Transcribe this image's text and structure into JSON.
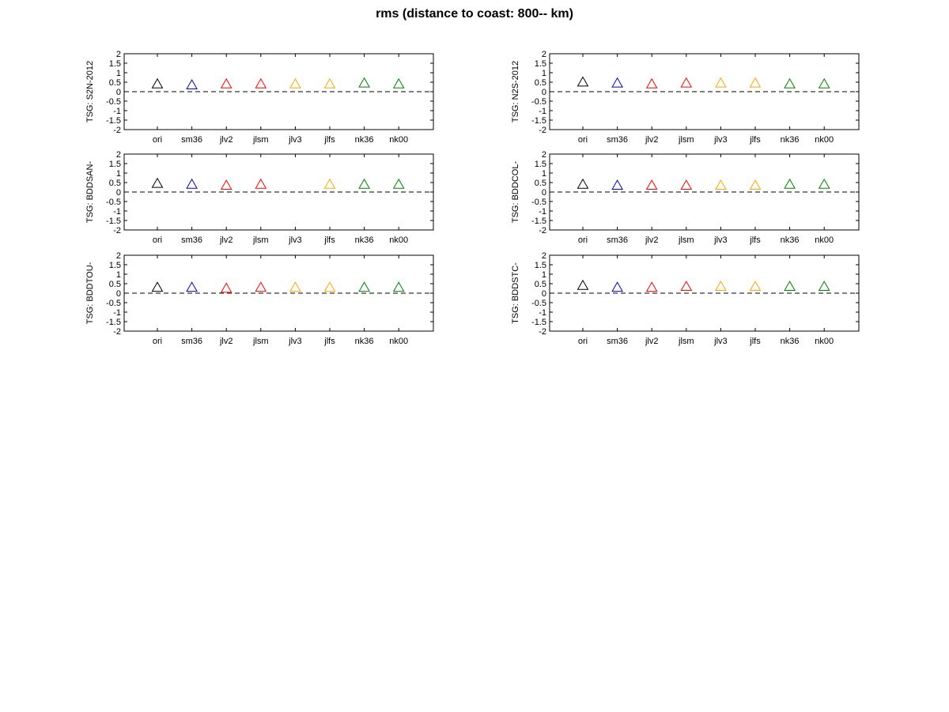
{
  "title": "rms (distance to coast: 800-- km)",
  "colors": {
    "ori": "#000000",
    "sm36": "#0000cc",
    "jlv2": "#ff0000",
    "jlsm": "#ff0000",
    "jlv3": "#ffa500",
    "jlfs": "#ffa500",
    "nk36": "#008000",
    "nk00": "#008000"
  },
  "chart_data": [
    {
      "type": "scatter",
      "ylabel": "TSG: S2N-2012",
      "categories": [
        "ori",
        "sm36",
        "jlv2",
        "jlsm",
        "jlv3",
        "jlfs",
        "nk36",
        "nk00"
      ],
      "values": [
        0.4,
        0.35,
        0.4,
        0.4,
        0.4,
        0.4,
        0.45,
        0.4
      ],
      "ylim": [
        -2,
        2
      ],
      "yticks": [
        "2",
        "1.5",
        "1",
        "0.5",
        "0",
        "-0.5",
        "-1",
        "-1.5",
        "-2"
      ],
      "reference_line": 0,
      "marker": "triangle",
      "grid": false
    },
    {
      "type": "scatter",
      "ylabel": "TSG: N2S-2012",
      "categories": [
        "ori",
        "sm36",
        "jlv2",
        "jlsm",
        "jlv3",
        "jlfs",
        "nk36",
        "nk00"
      ],
      "values": [
        0.5,
        0.45,
        0.4,
        0.45,
        0.45,
        0.45,
        0.4,
        0.4
      ],
      "ylim": [
        -2,
        2
      ],
      "yticks": [
        "2",
        "1.5",
        "1",
        "0.5",
        "0",
        "-0.5",
        "-1",
        "-1.5",
        "-2"
      ],
      "reference_line": 0,
      "marker": "triangle",
      "grid": false
    },
    {
      "type": "scatter",
      "ylabel": "TSG: BDDSAN-",
      "categories": [
        "ori",
        "sm36",
        "jlv2",
        "jlsm",
        "jlv3",
        "jlfs",
        "nk36",
        "nk00"
      ],
      "values": [
        0.45,
        0.4,
        0.35,
        0.4,
        null,
        0.4,
        0.4,
        0.4
      ],
      "ylim": [
        -2,
        2
      ],
      "yticks": [
        "2",
        "1.5",
        "1",
        "0.5",
        "0",
        "-0.5",
        "-1",
        "-1.5",
        "-2"
      ],
      "reference_line": 0,
      "marker": "triangle",
      "grid": false
    },
    {
      "type": "scatter",
      "ylabel": "TSG: BDDCOL-",
      "categories": [
        "ori",
        "sm36",
        "jlv2",
        "jlsm",
        "jlv3",
        "jlfs",
        "nk36",
        "nk00"
      ],
      "values": [
        0.4,
        0.35,
        0.35,
        0.35,
        0.35,
        0.35,
        0.4,
        0.4
      ],
      "ylim": [
        -2,
        2
      ],
      "yticks": [
        "2",
        "1.5",
        "1",
        "0.5",
        "0",
        "-0.5",
        "-1",
        "-1.5",
        "-2"
      ],
      "reference_line": 0,
      "marker": "triangle",
      "grid": false
    },
    {
      "type": "scatter",
      "ylabel": "TSG: BDDTOU-",
      "categories": [
        "ori",
        "sm36",
        "jlv2",
        "jlsm",
        "jlv3",
        "jlfs",
        "nk36",
        "nk00"
      ],
      "values": [
        0.3,
        0.3,
        0.25,
        0.3,
        0.3,
        0.3,
        0.3,
        0.3
      ],
      "ylim": [
        -2,
        2
      ],
      "yticks": [
        "2",
        "1.5",
        "1",
        "0.5",
        "0",
        "-0.5",
        "-1",
        "-1.5",
        "-2"
      ],
      "reference_line": 0,
      "marker": "triangle",
      "grid": false
    },
    {
      "type": "scatter",
      "ylabel": "TSG: BDDSTC-",
      "categories": [
        "ori",
        "sm36",
        "jlv2",
        "jlsm",
        "jlv3",
        "jlfs",
        "nk36",
        "nk00"
      ],
      "values": [
        0.4,
        0.3,
        0.3,
        0.35,
        0.35,
        0.35,
        0.35,
        0.35
      ],
      "ylim": [
        -2,
        2
      ],
      "yticks": [
        "2",
        "1.5",
        "1",
        "0.5",
        "0",
        "-0.5",
        "-1",
        "-1.5",
        "-2"
      ],
      "reference_line": 0,
      "marker": "triangle",
      "grid": false
    }
  ]
}
